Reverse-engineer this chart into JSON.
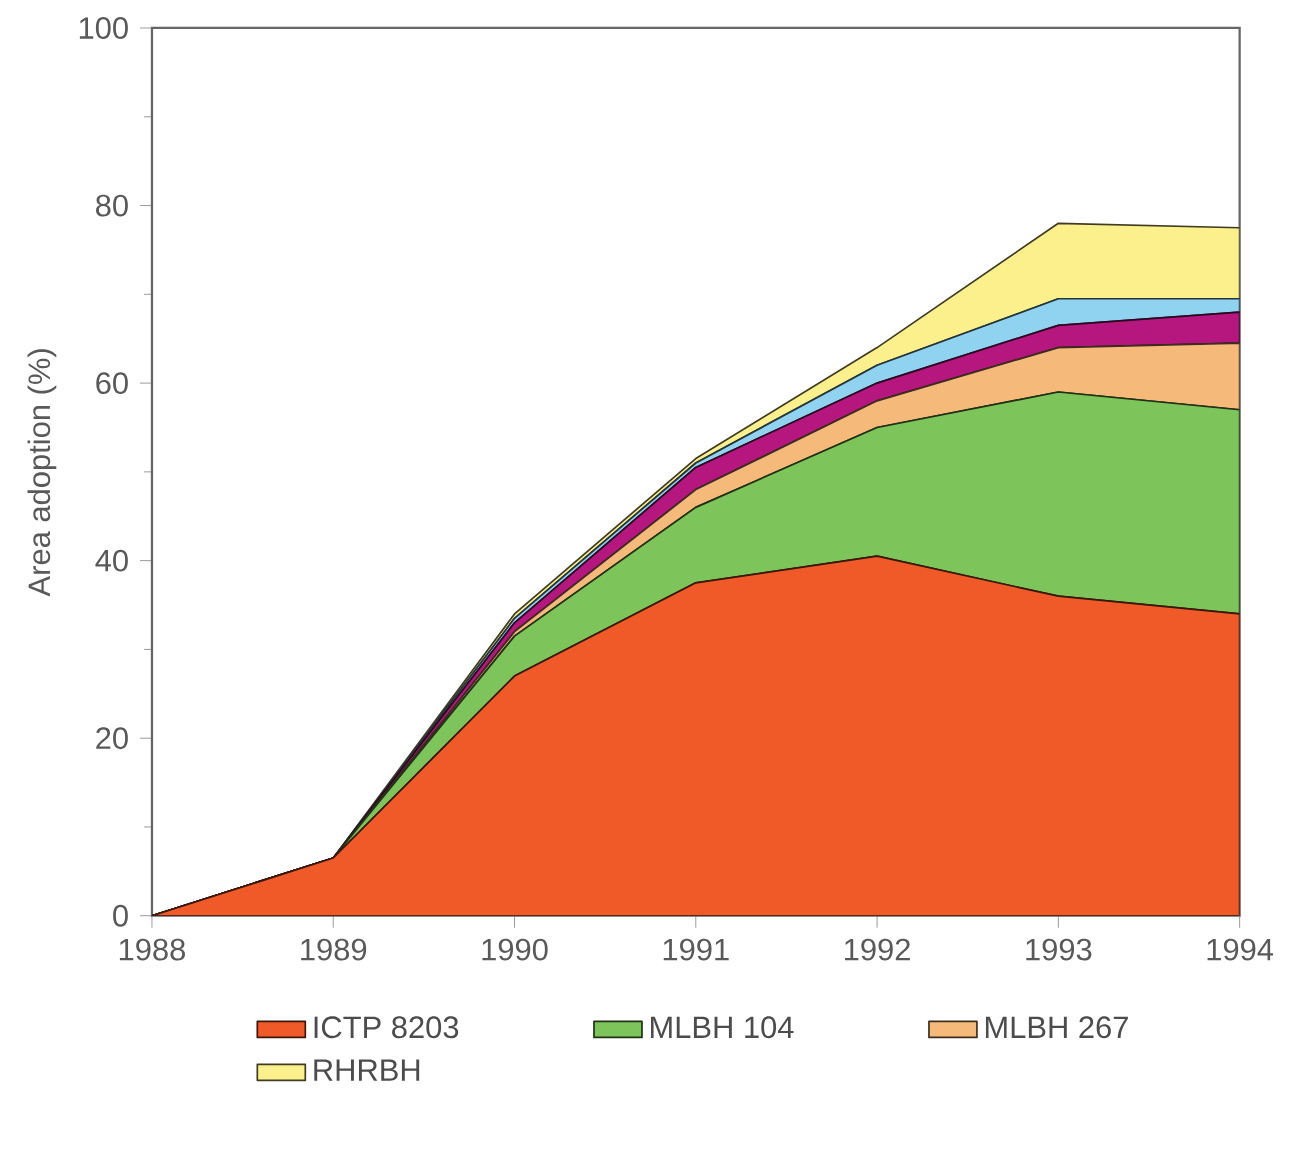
{
  "chart_data": {
    "type": "area",
    "stacked": true,
    "ylabel": "Area adoption (%)",
    "x": [
      1988,
      1989,
      1990,
      1991,
      1992,
      1993,
      1994
    ],
    "xlim": [
      1988,
      1994
    ],
    "xticks": [
      1988,
      1989,
      1990,
      1991,
      1992,
      1993,
      1994
    ],
    "ylim": [
      0,
      100
    ],
    "yticks": [
      0,
      20,
      40,
      60,
      80,
      100
    ],
    "legend": "bottom",
    "series": [
      {
        "name": "ICTP 8203",
        "color": "#f05a28",
        "values": [
          0,
          6.5,
          27,
          37.5,
          40.5,
          36,
          34
        ]
      },
      {
        "name": "MLBH 104",
        "color": "#7dc45a",
        "values": [
          0,
          0,
          4.5,
          8.5,
          14.5,
          23,
          23
        ]
      },
      {
        "name": "MLBH 267",
        "color": "#f5b97a",
        "values": [
          0,
          0,
          0.5,
          2,
          3,
          5,
          7.5
        ]
      },
      {
        "color": "#b5177f",
        "values": [
          0,
          0,
          1,
          2.5,
          2,
          2.5,
          3.5
        ]
      },
      {
        "color": "#8fd3f0",
        "values": [
          0,
          0,
          0.5,
          0.5,
          2,
          3,
          1.5
        ]
      },
      {
        "name": "RHRBH",
        "color": "#fbf08c",
        "values": [
          0,
          0,
          0.5,
          0.5,
          2,
          8.5,
          8
        ]
      }
    ]
  }
}
